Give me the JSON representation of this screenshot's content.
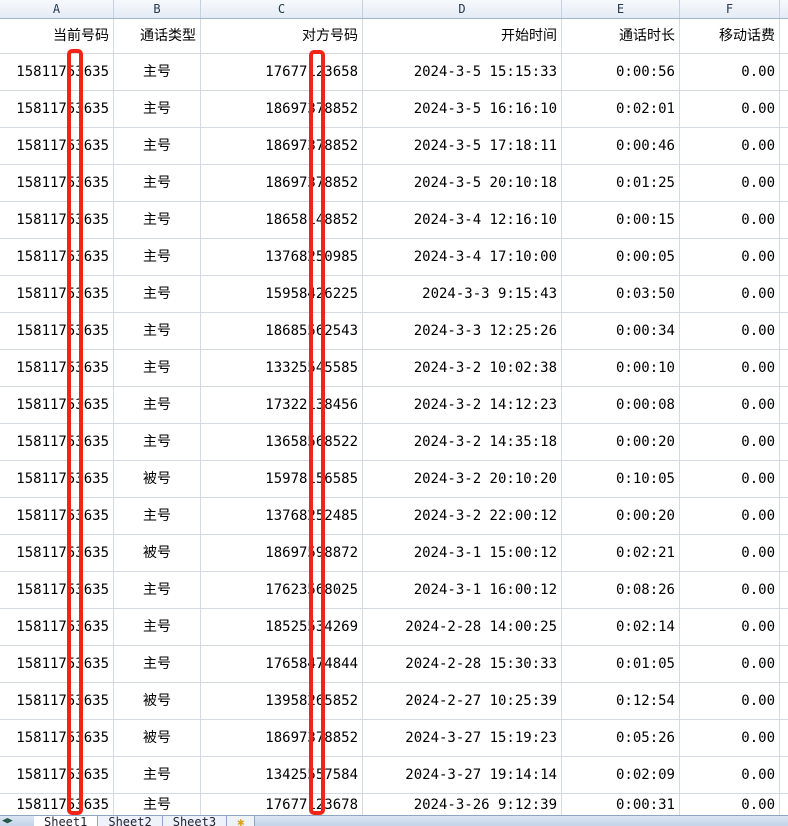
{
  "column_letters": [
    "A",
    "B",
    "C",
    "D",
    "E",
    "F"
  ],
  "headers": [
    "当前号码",
    "通话类型",
    "对方号码",
    "开始时间",
    "通话时长",
    "移动话费"
  ],
  "rows": [
    [
      "15811753635",
      "主号",
      "17677123658",
      "2024-3-5 15:15:33",
      "0:00:56",
      "0.00"
    ],
    [
      "15811753635",
      "主号",
      "18697378852",
      "2024-3-5 16:16:10",
      "0:02:01",
      "0.00"
    ],
    [
      "15811753635",
      "主号",
      "18697378852",
      "2024-3-5 17:18:11",
      "0:00:46",
      "0.00"
    ],
    [
      "15811753635",
      "主号",
      "18697378852",
      "2024-3-5 20:10:18",
      "0:01:25",
      "0.00"
    ],
    [
      "15811753635",
      "主号",
      "18658148852",
      "2024-3-4 12:16:10",
      "0:00:15",
      "0.00"
    ],
    [
      "15811753635",
      "主号",
      "13768250985",
      "2024-3-4 17:10:00",
      "0:00:05",
      "0.00"
    ],
    [
      "15811753635",
      "主号",
      "15958426225",
      "2024-3-3 9:15:43",
      "0:03:50",
      "0.00"
    ],
    [
      "15811753635",
      "主号",
      "18685562543",
      "2024-3-3 12:25:26",
      "0:00:34",
      "0.00"
    ],
    [
      "15811753635",
      "主号",
      "13325545585",
      "2024-3-2 10:02:38",
      "0:00:10",
      "0.00"
    ],
    [
      "15811753635",
      "主号",
      "17322138456",
      "2024-3-2 14:12:23",
      "0:00:08",
      "0.00"
    ],
    [
      "15811753635",
      "主号",
      "13658568522",
      "2024-3-2 14:35:18",
      "0:00:20",
      "0.00"
    ],
    [
      "15811753635",
      "被号",
      "15978156585",
      "2024-3-2 20:10:20",
      "0:10:05",
      "0.00"
    ],
    [
      "15811753635",
      "主号",
      "13768252485",
      "2024-3-2 22:00:12",
      "0:00:20",
      "0.00"
    ],
    [
      "15811753635",
      "被号",
      "18697598872",
      "2024-3-1 15:00:12",
      "0:02:21",
      "0.00"
    ],
    [
      "15811753635",
      "主号",
      "17623568025",
      "2024-3-1 16:00:12",
      "0:08:26",
      "0.00"
    ],
    [
      "15811753635",
      "主号",
      "18525534269",
      "2024-2-28 14:00:25",
      "0:02:14",
      "0.00"
    ],
    [
      "15811753635",
      "主号",
      "17658474844",
      "2024-2-28 15:30:33",
      "0:01:05",
      "0.00"
    ],
    [
      "15811753635",
      "被号",
      "13958265852",
      "2024-2-27 10:25:39",
      "0:12:54",
      "0.00"
    ],
    [
      "15811753635",
      "被号",
      "18697378852",
      "2024-3-27 15:19:23",
      "0:05:26",
      "0.00"
    ],
    [
      "15811753635",
      "主号",
      "13425557584",
      "2024-3-27 19:14:14",
      "0:02:09",
      "0.00"
    ],
    [
      "15811753635",
      "主号",
      "17677123678",
      "2024-3-26 9:12:39",
      "0:00:31",
      "0.00"
    ]
  ],
  "sheet_tabs": [
    "Sheet1",
    "Sheet2",
    "Sheet3"
  ],
  "active_sheet": "Sheet1",
  "redaction_color": "#f22418"
}
